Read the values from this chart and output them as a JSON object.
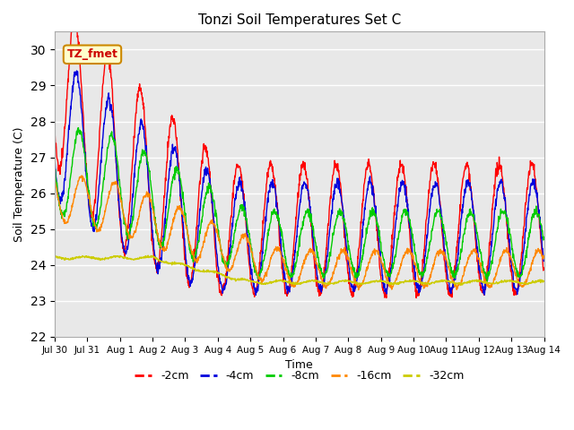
{
  "title": "Tonzi Soil Temperatures Set C",
  "xlabel": "Time",
  "ylabel": "Soil Temperature (C)",
  "ylim": [
    22.0,
    30.5
  ],
  "yticks": [
    22.0,
    23.0,
    24.0,
    25.0,
    26.0,
    27.0,
    28.0,
    29.0,
    30.0
  ],
  "annotation": "TZ_fmet",
  "series_colors": [
    "#ff0000",
    "#0000dd",
    "#00cc00",
    "#ff8800",
    "#cccc00"
  ],
  "series_labels": [
    "-2cm",
    "-4cm",
    "-8cm",
    "-16cm",
    "-32cm"
  ],
  "bg_color": "#e8e8e8",
  "grid_color": "#ffffff",
  "num_days": 15,
  "dt_hours": 0.25
}
